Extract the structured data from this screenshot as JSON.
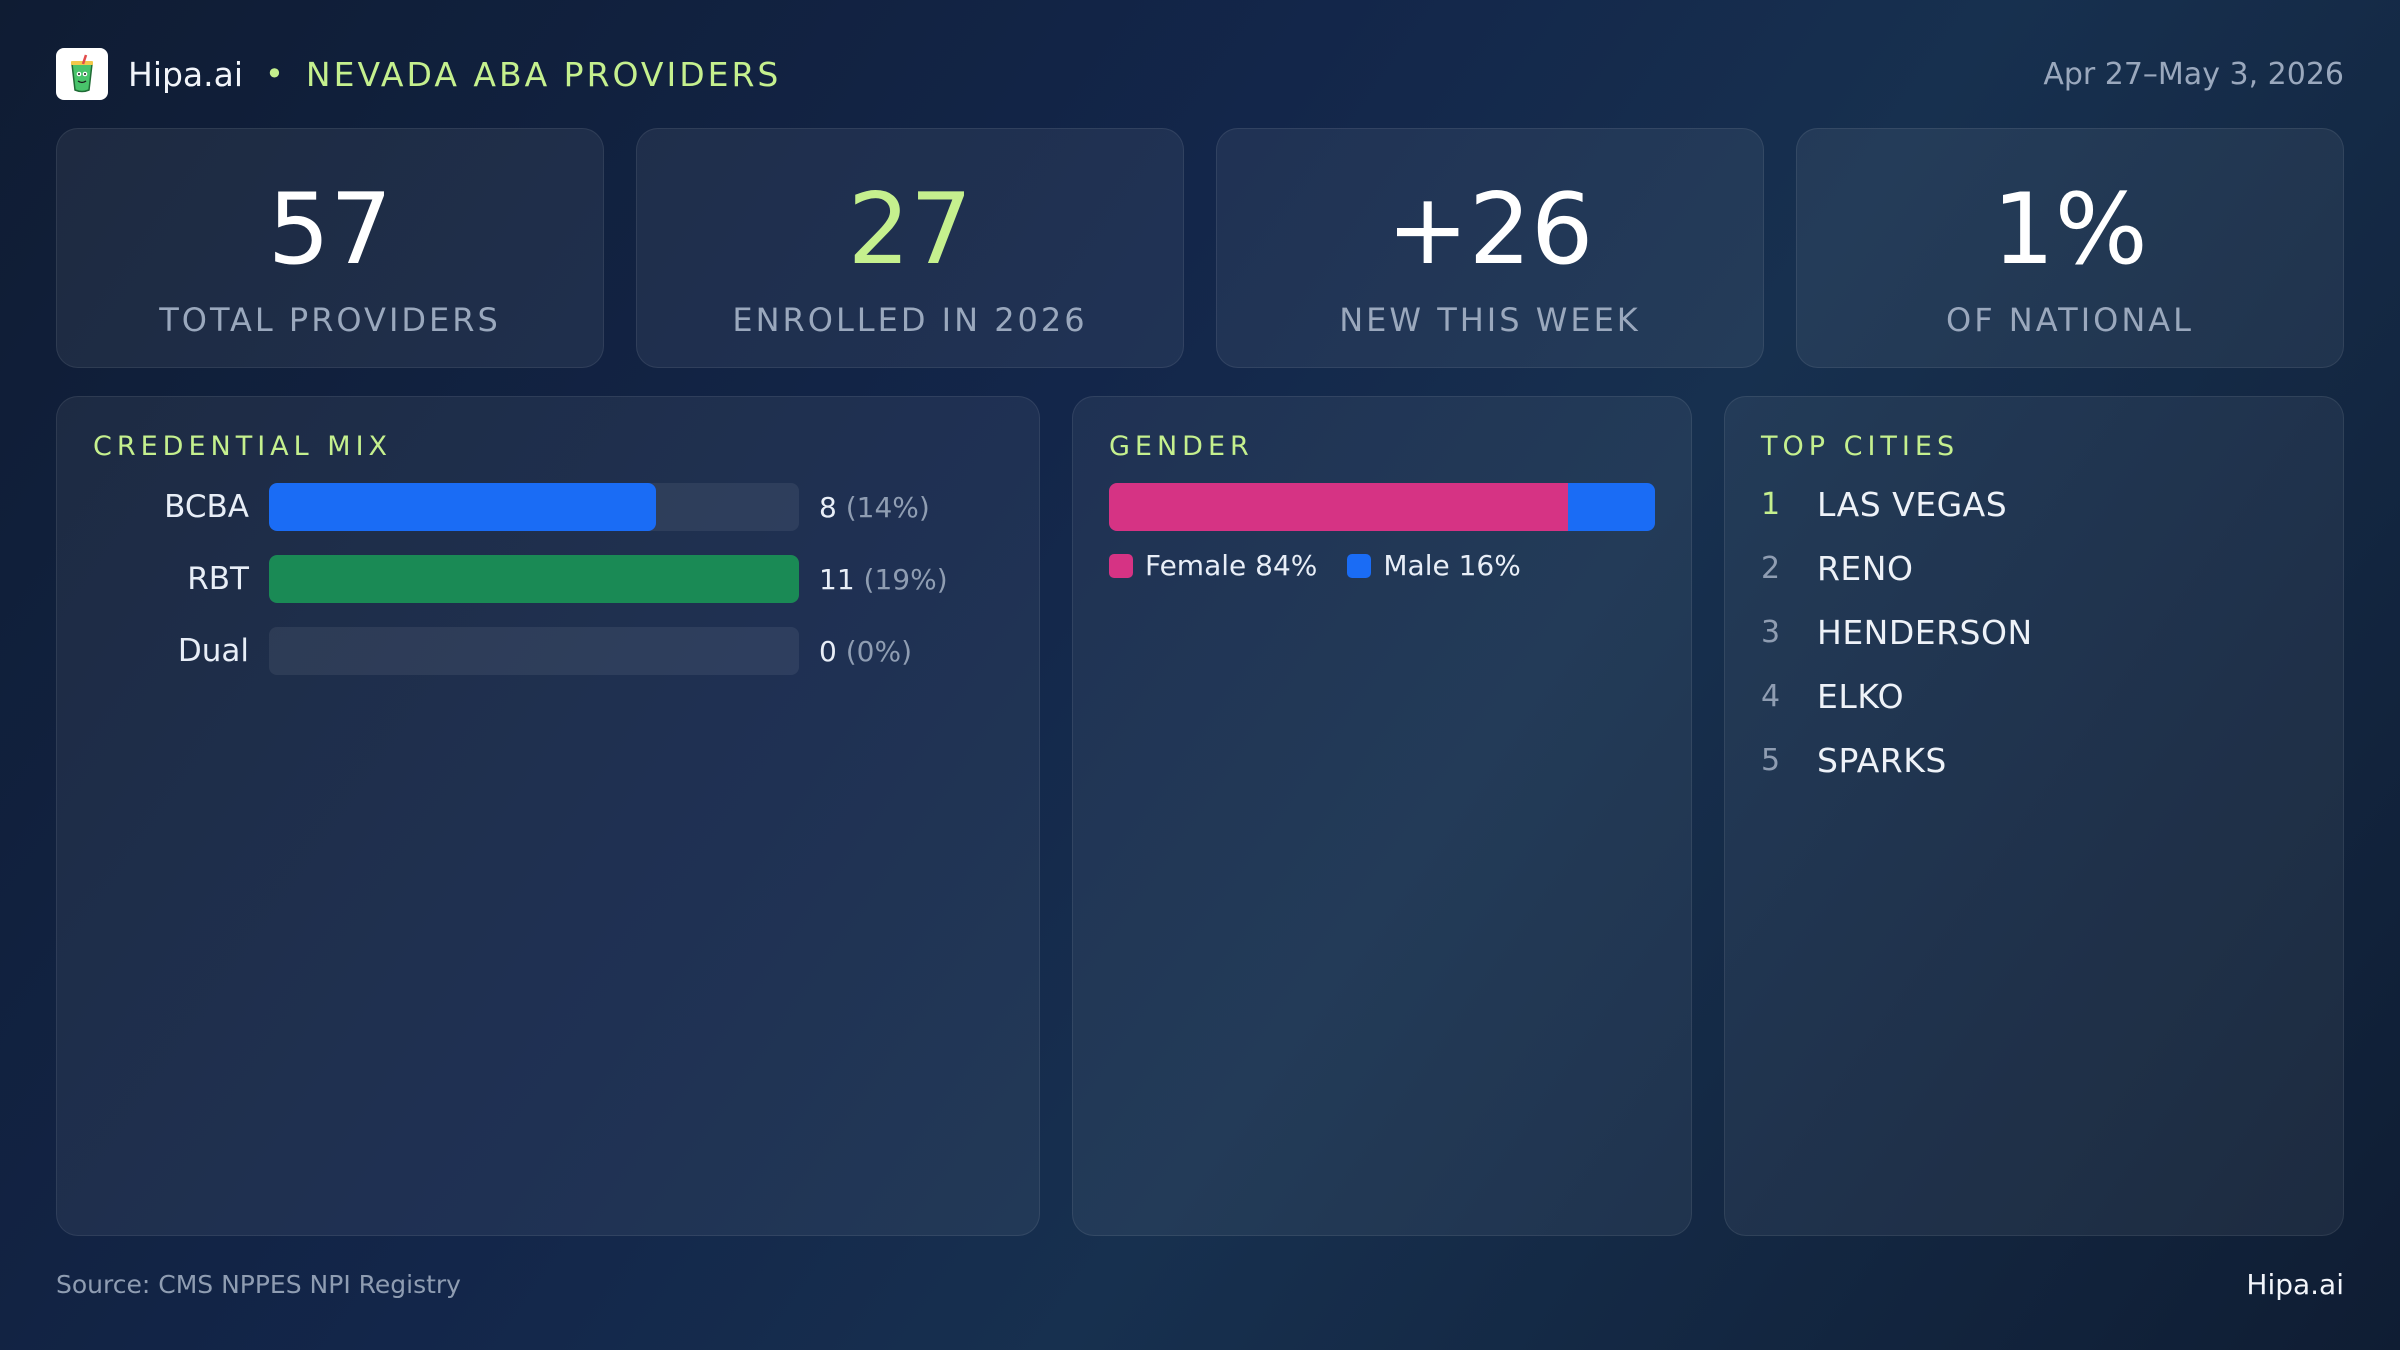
{
  "header": {
    "brand": "Hipa.ai",
    "separator": "•",
    "title": "NEVADA ABA PROVIDERS",
    "date_range": "Apr 27–May 3, 2026"
  },
  "stats": [
    {
      "value": "57",
      "label": "TOTAL PROVIDERS",
      "accent": "#ffffff"
    },
    {
      "value": "27",
      "label": "ENROLLED IN 2026",
      "accent": "#c5f08e"
    },
    {
      "value": "+26",
      "label": "NEW THIS WEEK",
      "accent": "#ffffff"
    },
    {
      "value": "1%",
      "label": "OF NATIONAL",
      "accent": "#ffffff"
    }
  ],
  "credential_mix": {
    "title": "CREDENTIAL MIX",
    "rows": [
      {
        "label": "BCBA",
        "count": "8",
        "pct": "(14%)",
        "fill_fraction": 0.73,
        "color": "#1a6cf5"
      },
      {
        "label": "RBT",
        "count": "11",
        "pct": "(19%)",
        "fill_fraction": 1.0,
        "color": "#1a8a55"
      },
      {
        "label": "Dual",
        "count": "0",
        "pct": "(0%)",
        "fill_fraction": 0.0,
        "color": "#1a6cf5"
      }
    ]
  },
  "gender": {
    "title": "GENDER",
    "segments": [
      {
        "label": "Female 84%",
        "fraction": 0.84,
        "color": "#d63384"
      },
      {
        "label": "Male 16%",
        "fraction": 0.16,
        "color": "#1a6cf5"
      }
    ]
  },
  "top_cities": {
    "title": "TOP CITIES",
    "items": [
      {
        "rank": "1",
        "name": "LAS VEGAS"
      },
      {
        "rank": "2",
        "name": "RENO"
      },
      {
        "rank": "3",
        "name": "HENDERSON"
      },
      {
        "rank": "4",
        "name": "ELKO"
      },
      {
        "rank": "5",
        "name": "SPARKS"
      }
    ]
  },
  "footer": {
    "source": "Source: CMS NPPES NPI Registry",
    "brand": "Hipa.ai"
  },
  "icons": {
    "logo": "cup-icon"
  }
}
